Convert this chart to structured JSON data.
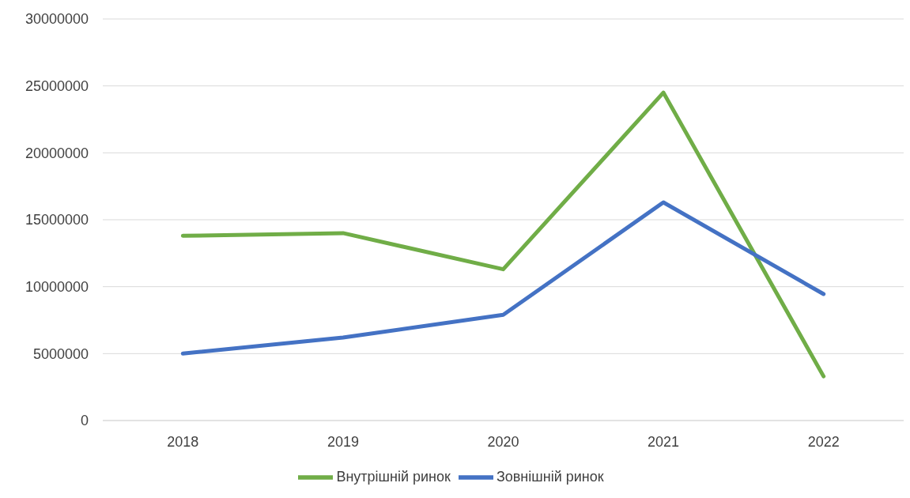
{
  "chart_data": {
    "type": "line",
    "categories": [
      "2018",
      "2019",
      "2020",
      "2021",
      "2022"
    ],
    "series": [
      {
        "name": "Внутрішній ринок",
        "color": "#70ad47",
        "values": [
          13800000,
          14000000,
          11300000,
          24500000,
          3300000
        ]
      },
      {
        "name": "Зовнішній ринок",
        "color": "#4472c4",
        "values": [
          5000000,
          6200000,
          7900000,
          16300000,
          9450000
        ]
      }
    ],
    "ylim": [
      0,
      30000000
    ],
    "yticks": [
      0,
      5000000,
      10000000,
      15000000,
      20000000,
      25000000,
      30000000
    ],
    "grid": "y",
    "legend": "bottom",
    "marker": "none",
    "line_style": "solid"
  }
}
